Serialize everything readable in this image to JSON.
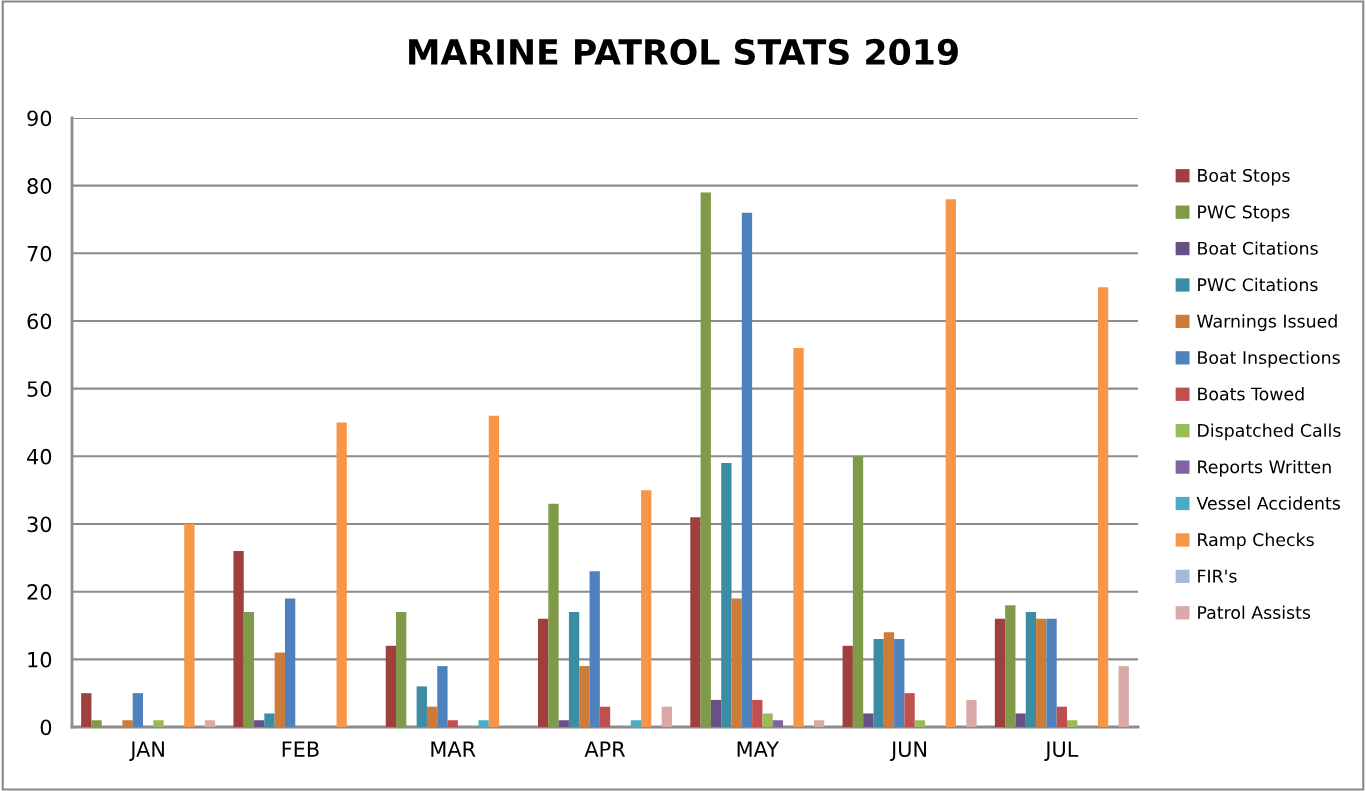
{
  "chart_data": {
    "type": "bar",
    "title": "MARINE PATROL STATS 2019",
    "categories": [
      "JAN",
      "FEB",
      "MAR",
      "APR",
      "MAY",
      "JUN",
      "JUL"
    ],
    "series": [
      {
        "name": "Boat Stops",
        "color": "#9e413e",
        "values": [
          5,
          26,
          12,
          16,
          31,
          12,
          16
        ]
      },
      {
        "name": "PWC Stops",
        "color": "#7f9a48",
        "values": [
          1,
          17,
          17,
          33,
          79,
          40,
          18
        ]
      },
      {
        "name": "Boat Citations",
        "color": "#695185",
        "values": [
          0,
          1,
          0,
          1,
          4,
          2,
          2
        ]
      },
      {
        "name": "PWC Citations",
        "color": "#3c8da3",
        "values": [
          0,
          2,
          6,
          17,
          39,
          13,
          17
        ]
      },
      {
        "name": "Warnings Issued",
        "color": "#cc7b38",
        "values": [
          1,
          11,
          3,
          9,
          19,
          14,
          16
        ]
      },
      {
        "name": "Boat Inspections",
        "color": "#4f81bd",
        "values": [
          5,
          19,
          9,
          23,
          76,
          13,
          16
        ]
      },
      {
        "name": "Boats Towed",
        "color": "#c0504d",
        "values": [
          0,
          0,
          1,
          3,
          4,
          5,
          3
        ]
      },
      {
        "name": "Dispatched Calls",
        "color": "#9bbb59",
        "values": [
          1,
          0,
          0,
          0,
          2,
          1,
          1
        ]
      },
      {
        "name": "Reports Written",
        "color": "#8064a2",
        "values": [
          0,
          0,
          0,
          0,
          1,
          0,
          0
        ]
      },
      {
        "name": "Vessel Accidents",
        "color": "#4bacc6",
        "values": [
          0,
          0,
          1,
          1,
          0,
          0,
          0
        ]
      },
      {
        "name": "Ramp Checks",
        "color": "#f79646",
        "values": [
          30,
          45,
          46,
          35,
          56,
          78,
          65
        ]
      },
      {
        "name": "FIR's",
        "color": "#a7b9da",
        "values": [
          0,
          0,
          0,
          0,
          0,
          0,
          0
        ]
      },
      {
        "name": "Patrol Assists",
        "color": "#d9a9a8",
        "values": [
          1,
          0,
          0,
          3,
          1,
          4,
          9
        ]
      }
    ],
    "ylim": [
      0,
      90
    ],
    "yticks": [
      0,
      10,
      20,
      30,
      40,
      50,
      60,
      70,
      80,
      90
    ],
    "grid": "y",
    "legend": "right"
  }
}
